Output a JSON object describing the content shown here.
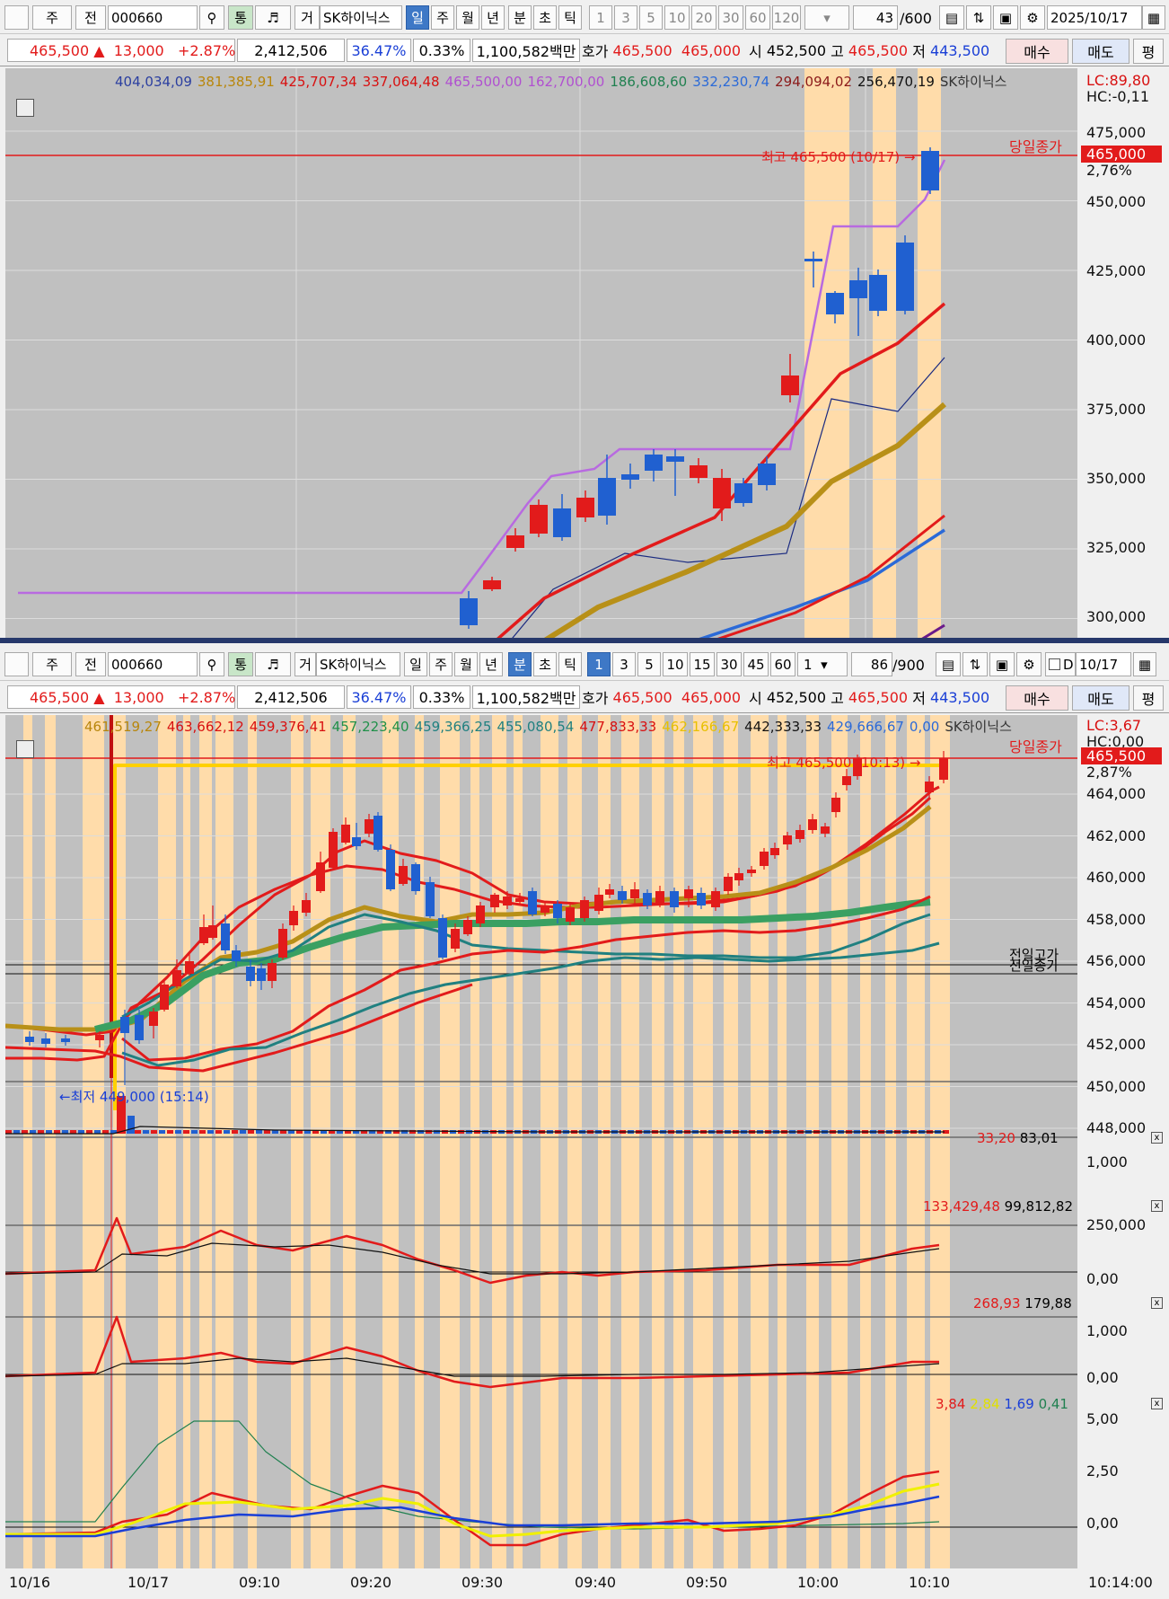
{
  "top": {
    "toolbar": {
      "type": "주",
      "prev": "전",
      "code": "000660",
      "tong": "통",
      "geo": "거",
      "name": "SK하이닉스",
      "periods": [
        "일",
        "주",
        "월",
        "년",
        "분",
        "초",
        "틱"
      ],
      "selected": "일",
      "nums": [
        "1",
        "3",
        "5",
        "10",
        "20",
        "30",
        "60",
        "120"
      ],
      "count": "43",
      "total": "/600",
      "date": "2025/10/17"
    },
    "legend": [
      {
        "t": "404,034,09",
        "c": "#2b3fa0"
      },
      {
        "t": "381,385,91",
        "c": "#b8860b"
      },
      {
        "t": "425,707,34",
        "c": "#d81010"
      },
      {
        "t": "337,064,48",
        "c": "#d81010"
      },
      {
        "t": "465,500,00",
        "c": "#b050d0"
      },
      {
        "t": "162,700,00",
        "c": "#b050d0"
      },
      {
        "t": "186,608,60",
        "c": "#208050"
      },
      {
        "t": "332,230,74",
        "c": "#2b6ad8"
      },
      {
        "t": "294,094,02",
        "c": "#8b1a1a"
      },
      {
        "t": "256,470,19",
        "c": "#111"
      },
      {
        "t": "SK하이닉스",
        "c": "#333"
      }
    ],
    "lc": "LC:89,80",
    "hc": "HC:-0,11",
    "yticks": [
      "475,000",
      "450,000",
      "425,000",
      "400,000",
      "375,000",
      "350,000",
      "325,000",
      "300,000"
    ],
    "close_label": "당일종가",
    "price_tag": "465,000",
    "pct_tag": "2,76%",
    "high_note": "최고 465,500 (10/17) →"
  },
  "info": {
    "price": "465,500",
    "arrow": "▲",
    "change": "13,000",
    "pct": "+2.87%",
    "volume": "2,412,506",
    "rate1": "36.47%",
    "rate2": "0.33%",
    "amount": "1,100,582백만",
    "hoga": "호가",
    "ask": "465,500",
    "bid": "465,000",
    "open_lbl": "시",
    "open": "452,500",
    "high_lbl": "고",
    "high": "465,500",
    "low_lbl": "저",
    "low": "443,500",
    "buy": "매수",
    "sell": "매도",
    "eval": "평"
  },
  "bottom": {
    "toolbar": {
      "type": "주",
      "prev": "전",
      "code": "000660",
      "tong": "통",
      "geo": "거",
      "name": "SK하이닉스",
      "periods": [
        "일",
        "주",
        "월",
        "년",
        "분",
        "초",
        "틱"
      ],
      "selected": "분",
      "nums": [
        "1",
        "3",
        "5",
        "10",
        "15",
        "30",
        "45",
        "60"
      ],
      "interval": "1",
      "count": "86",
      "total": "/900",
      "d": "D",
      "date": "10/17"
    },
    "legend": [
      {
        "t": "461,519,27",
        "c": "#b8860b"
      },
      {
        "t": "463,662,12",
        "c": "#d81010"
      },
      {
        "t": "459,376,41",
        "c": "#d81010"
      },
      {
        "t": "457,223,40",
        "c": "#20904a"
      },
      {
        "t": "459,366,25",
        "c": "#208080"
      },
      {
        "t": "455,080,54",
        "c": "#208080"
      },
      {
        "t": "477,833,33",
        "c": "#d81010"
      },
      {
        "t": "462,166,67",
        "c": "#e8c000"
      },
      {
        "t": "442,333,33",
        "c": "#111"
      },
      {
        "t": "429,666,67",
        "c": "#2b6ad8"
      },
      {
        "t": "0,00",
        "c": "#2b6ad8"
      },
      {
        "t": "SK하이닉스",
        "c": "#333"
      }
    ],
    "lc": "LC:3,67",
    "hc": "HC:0,00",
    "yticks": [
      "464,000",
      "462,000",
      "460,000",
      "458,000",
      "456,000",
      "454,000",
      "452,000",
      "450,000",
      "448,000"
    ],
    "close_label": "당일종가",
    "price_tag": "465,500",
    "pct_tag": "2,87%",
    "high_note": "최고 465,500 (10:13) →",
    "low_note": "←최저 449,000 (15:14)",
    "prev_hi": "전일고가",
    "prev_close": "전일종가",
    "vol_legend": {
      "a": "33,20",
      "b": "83,01"
    },
    "vol_tick": "1,000",
    "ind1_legend": {
      "a": "133,429,48",
      "b": "99,812,82"
    },
    "ind1_ticks": [
      "250,000",
      "0,00"
    ],
    "ind2_legend": {
      "a": "268,93",
      "b": "179,88"
    },
    "ind2_ticks": [
      "1,000",
      "0,00"
    ],
    "ind3_legend": {
      "a": "3,84",
      "b": "2,84",
      "c": "1,69",
      "d": "0,41"
    },
    "ind3_ticks": [
      "5,00",
      "2,50",
      "0,00"
    ],
    "xlabels": [
      "10/16",
      "10/17",
      "09:10",
      "09:20",
      "09:30",
      "09:40",
      "09:50",
      "10:00",
      "10:10"
    ],
    "xend": "10:14:00"
  }
}
